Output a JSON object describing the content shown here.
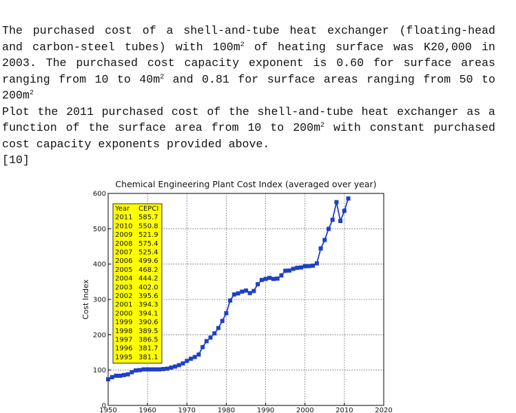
{
  "question": {
    "paragraph1": {
      "part1": "The purchased cost of a shell-and-tube heat exchanger (floating-head and carbon-steel tubes) with 100m",
      "sup1": "2",
      "part2": " of heating surface was K20,000 in 2003. The purchased cost capacity exponent is 0.60 for surface areas ranging from 10 to 40m",
      "sup2": "2",
      "part3": " and 0.81 for surface areas ranging from 50 to 200m",
      "sup3": "2"
    },
    "paragraph2": {
      "part1": "Plot the 2011 purchased cost of the shell-and-tube heat exchanger as a function of the surface area from 10 to 200m",
      "sup1": "2",
      "part2": " with constant purchased cost capacity exponents provided above."
    },
    "marks": "[10]"
  },
  "chart_data": {
    "type": "line",
    "title": "Chemical Engineering Plant Cost Index (averaged over year)",
    "xlabel": "",
    "ylabel": "Cost Index",
    "xlim": [
      1950,
      2020
    ],
    "ylim": [
      0,
      600
    ],
    "x_ticks": [
      1950,
      1960,
      1970,
      1980,
      1990,
      2000,
      2010,
      2020
    ],
    "y_ticks": [
      0,
      100,
      200,
      300,
      400,
      500,
      600
    ],
    "grid": true,
    "series_color": "#1f3fc8",
    "marker": "square",
    "series": [
      {
        "x": [
          1950,
          1951,
          1952,
          1953,
          1954,
          1955,
          1956,
          1957,
          1958,
          1959,
          1960,
          1961,
          1962,
          1963,
          1964,
          1965,
          1966,
          1967,
          1968,
          1969,
          1970,
          1971,
          1972,
          1973,
          1974,
          1975,
          1976,
          1977,
          1978,
          1979,
          1980,
          1981,
          1982,
          1983,
          1984,
          1985,
          1986,
          1987,
          1988,
          1989,
          1990,
          1991,
          1992,
          1993,
          1994,
          1995,
          1996,
          1997,
          1998,
          1999,
          2000,
          2001,
          2002,
          2003,
          2004,
          2005,
          2006,
          2007,
          2008,
          2009,
          2010,
          2011
        ],
        "y": [
          74,
          80,
          84,
          84,
          86,
          88,
          94,
          99,
          100,
          102,
          102,
          102,
          102,
          102,
          103,
          104,
          107,
          110,
          114,
          119,
          126,
          132,
          137,
          144,
          165,
          182,
          192,
          204,
          219,
          239,
          261,
          297,
          314,
          317,
          322,
          325,
          318,
          324,
          343,
          355,
          358,
          361,
          358,
          359,
          368,
          381.1,
          381.7,
          386.5,
          389.5,
          390.6,
          394.1,
          394.3,
          395.6,
          402.0,
          444.2,
          468.2,
          499.6,
          525.4,
          575.4,
          521.9,
          550.8,
          585.7
        ]
      }
    ],
    "legend_table": {
      "header": [
        "Year",
        "CEPCI"
      ],
      "rows": [
        [
          "2011",
          "585.7"
        ],
        [
          "2010",
          "550.8"
        ],
        [
          "2009",
          "521.9"
        ],
        [
          "2008",
          "575.4"
        ],
        [
          "2007",
          "525.4"
        ],
        [
          "2006",
          "499.6"
        ],
        [
          "2005",
          "468.2"
        ],
        [
          "2004",
          "444.2"
        ],
        [
          "2003",
          "402.0"
        ],
        [
          "2002",
          "395.6"
        ],
        [
          "2001",
          "394.3"
        ],
        [
          "2000",
          "394.1"
        ],
        [
          "1999",
          "390.6"
        ],
        [
          "1998",
          "389.5"
        ],
        [
          "1997",
          "386.5"
        ],
        [
          "1996",
          "381.7"
        ],
        [
          "1995",
          "381.1"
        ]
      ],
      "background": "#ffff00"
    }
  }
}
